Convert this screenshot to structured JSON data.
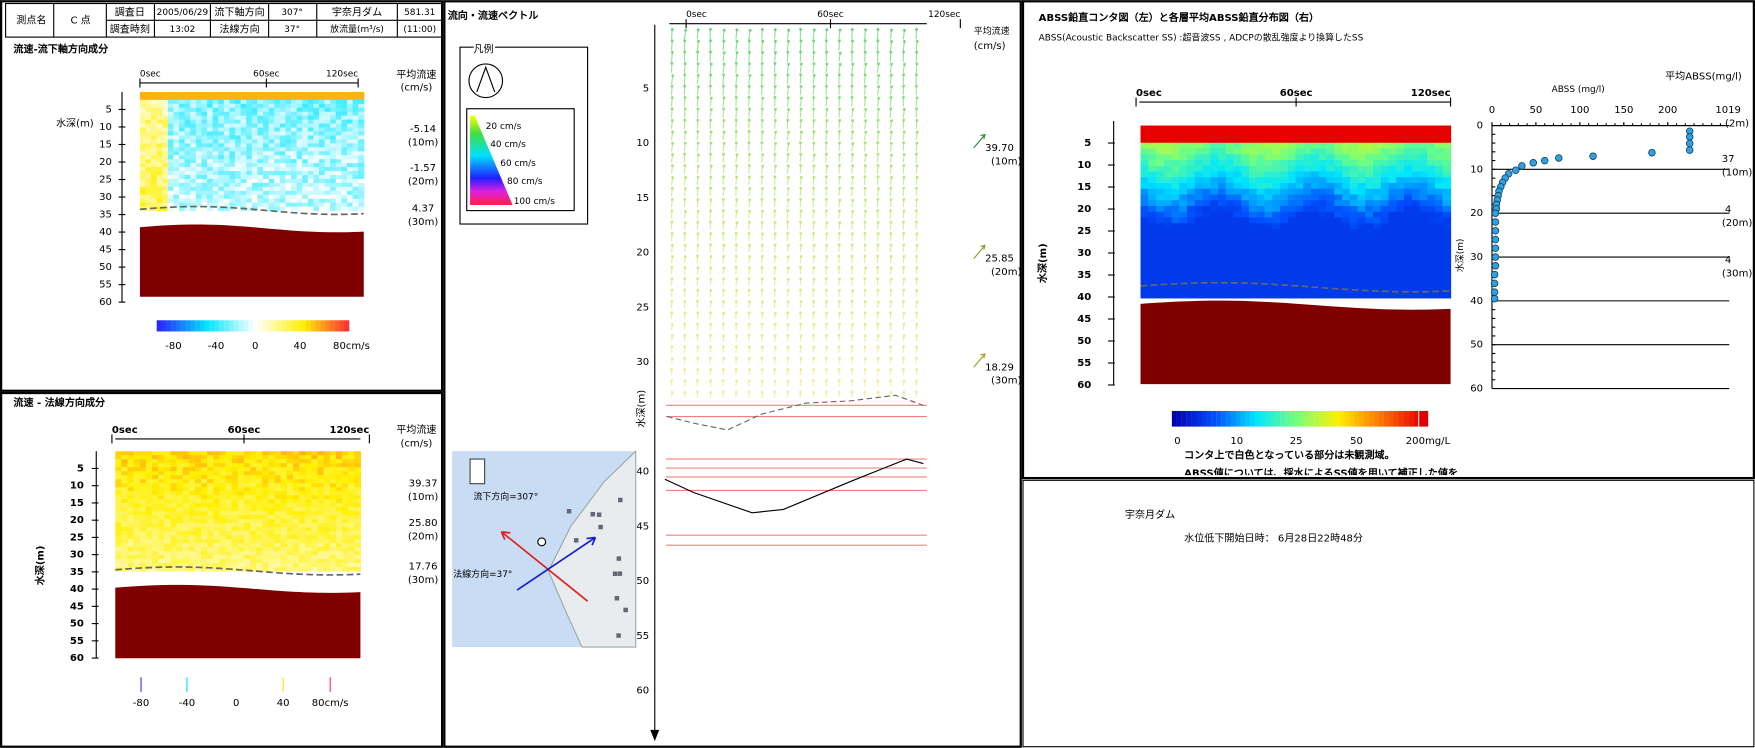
{
  "header": {
    "point_label": "測点名",
    "point": "C 点",
    "date_label": "調査日",
    "date": "2005/06/29",
    "time_label": "調査時刻",
    "time": "13:02",
    "flow_axis_label": "流下軸方向",
    "flow_axis": "307°",
    "normal_label": "法線方向",
    "normal": "37°",
    "dam": "宇奈月ダム",
    "discharge_label": "放流量(m³/s)",
    "discharge": "581.31",
    "discharge_time": "(11:00)"
  },
  "panel1": {
    "title": "流速-流下軸方向成分",
    "time_ticks": [
      "0sec",
      "60sec",
      "120sec"
    ],
    "depth_label": "水深(m)",
    "depth_ticks": [
      5,
      10,
      15,
      20,
      25,
      30,
      35,
      40,
      45,
      50,
      55,
      60
    ],
    "mean_header": [
      "平均流速",
      "(cm/s)"
    ],
    "means": [
      {
        "value": "-5.14",
        "depth": "(10m)"
      },
      {
        "value": "-1.57",
        "depth": "(20m)"
      },
      {
        "value": "4.37",
        "depth": "(30m)"
      }
    ],
    "colorbar_ticks": [
      "-80",
      "-40",
      "0",
      "40",
      "80cm/s"
    ]
  },
  "panel2": {
    "title": "流速 - 法線方向成分",
    "time_ticks": [
      "0sec",
      "60sec",
      "120sec"
    ],
    "depth_label": "水深(m)",
    "depth_ticks": [
      5,
      10,
      15,
      20,
      25,
      30,
      35,
      40,
      45,
      50,
      55,
      60
    ],
    "mean_header": [
      "平均流速",
      "(cm/s)"
    ],
    "means": [
      {
        "value": "39.37",
        "depth": "(10m)"
      },
      {
        "value": "25.80",
        "depth": "(20m)"
      },
      {
        "value": "17.76",
        "depth": "(30m)"
      }
    ],
    "colorbar_ticks": [
      "-80",
      "-40",
      "0",
      "40",
      "80cm/s"
    ]
  },
  "panel3": {
    "title": "流向・流速ベクトル",
    "time_ticks": [
      "0sec",
      "60sec",
      "120sec"
    ],
    "depth_label": "水深(m)",
    "depth_ticks": [
      5,
      10,
      15,
      20,
      25,
      30,
      40,
      45,
      50,
      55,
      60
    ],
    "mean_header": [
      "平均流速",
      "(cm/s)"
    ],
    "means": [
      {
        "value": "39.70",
        "depth": "(10m)"
      },
      {
        "value": "25.85",
        "depth": "(20m)"
      },
      {
        "value": "18.29",
        "depth": "(30m)"
      }
    ],
    "legend_title": "凡例",
    "legend_items": [
      "20 cm/s",
      "40 cm/s",
      "60 cm/s",
      "80 cm/s",
      "100 cm/s"
    ],
    "map_flow": "流下方向=307°",
    "map_normal": "法線方向=37°"
  },
  "panel4": {
    "title": "ABSS鉛直コンタ図（左）と各層平均ABSS鉛直分布図（右）",
    "subtitle": "ABSS(Acoustic Backscatter SS) :超音波SS , ADCPの散乱強度より換算したSS",
    "time_ticks": [
      "0sec",
      "60sec",
      "120sec"
    ],
    "depth_label": "水深(m)",
    "depth_ticks": [
      5,
      10,
      15,
      20,
      25,
      30,
      35,
      40,
      45,
      50,
      55,
      60
    ],
    "mean_header": "平均ABSS(mg/l)",
    "means": [
      {
        "value": "1019",
        "depth": "(2m)"
      },
      {
        "value": "37",
        "depth": "(10m)"
      },
      {
        "value": "4",
        "depth": "(20m)"
      },
      {
        "value": "4",
        "depth": "(30m)"
      }
    ],
    "colorbar_ticks": [
      "0",
      "10",
      "25",
      "50",
      "200mg/L"
    ],
    "notes": [
      "コンタ上で白色となっている部分は未観測域。",
      "ABSS値については、採水によるSS値を用いて補正した値を"
    ],
    "profile": {
      "type": "scatter",
      "x_label": "ABSS (mg/l)",
      "y_label": "水深(m)",
      "xlim": [
        0,
        270
      ],
      "xticks": [
        0,
        50,
        100,
        150,
        200
      ],
      "ylim": [
        0,
        60
      ],
      "yticks": [
        0,
        10,
        20,
        30,
        40,
        50,
        60
      ],
      "depth": [
        1.3,
        2.6,
        4.1,
        5.6,
        6.2,
        7.0,
        7.4,
        8.0,
        8.5,
        9.2,
        10.2,
        11,
        12,
        13,
        14,
        15,
        16,
        17,
        18,
        19,
        20,
        22,
        24,
        26,
        28,
        30,
        32,
        34,
        36,
        38,
        39.5
      ],
      "abss": [
        225,
        225,
        225,
        225,
        182,
        115,
        76,
        60,
        47,
        34,
        27,
        19,
        15,
        12,
        10,
        8,
        7,
        6,
        5,
        5,
        4,
        4,
        4,
        4,
        4,
        4,
        4,
        3,
        3,
        3,
        3
      ]
    }
  },
  "panel5": {
    "lines": [
      "宇奈月ダム",
      "水位低下開始日時： 6月28日22時48分"
    ]
  }
}
